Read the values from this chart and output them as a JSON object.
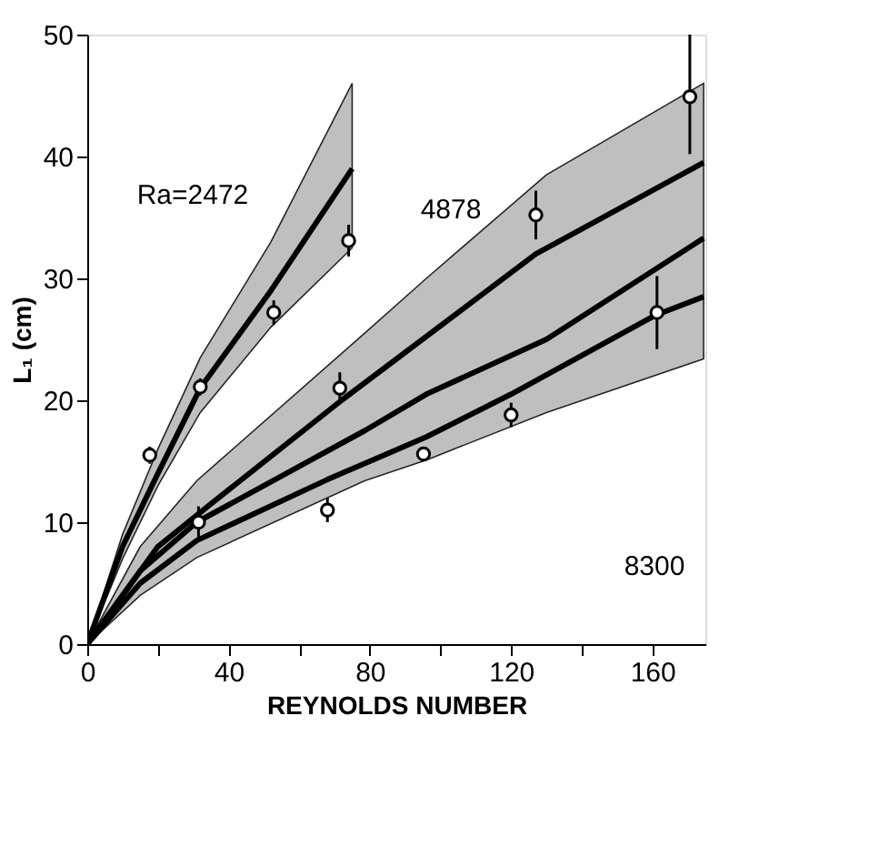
{
  "chart_data": {
    "type": "line",
    "xlabel": "REYNOLDS NUMBER",
    "ylabel": "L₁ (cm)",
    "xlim": [
      0,
      175
    ],
    "ylim": [
      0,
      50
    ],
    "xticks": [
      0,
      {
        "value": 20,
        "label": null
      },
      40,
      {
        "value": 60,
        "label": null
      },
      80,
      {
        "value": 100,
        "label": null
      },
      120,
      {
        "value": 140,
        "label": null
      },
      160
    ],
    "yticks": [
      0,
      10,
      20,
      30,
      40,
      50
    ],
    "grid": false,
    "line_style": "solid",
    "series": [
      {
        "color": "#000000",
        "x": [
          0,
          10,
          20,
          32,
          52,
          75
        ],
        "values": [
          0,
          8,
          14,
          21,
          29,
          39
        ],
        "lower": [
          0,
          7,
          13,
          19,
          26,
          32.5
        ],
        "upper": [
          0,
          9,
          16,
          23.5,
          33,
          46
        ]
      },
      {
        "color": "#000000",
        "x": [
          0,
          15,
          31,
          78.5,
          96,
          130,
          174.5
        ],
        "values": [
          0,
          6,
          10,
          17.5,
          20.5,
          25,
          33.3
        ],
        "lower": [
          0,
          4,
          7.1,
          13.4,
          15.1,
          19,
          23.4
        ],
        "upper": [
          0,
          8,
          13.4,
          25.5,
          30,
          38.5,
          46
        ]
      },
      {
        "color": "#000000",
        "x": [
          0,
          20,
          35,
          72,
          127,
          174.5
        ],
        "values": [
          0,
          8,
          11.5,
          20,
          32,
          39.5
        ]
      },
      {
        "color": "#000000",
        "x": [
          0,
          15,
          31,
          68,
          96,
          120,
          161,
          174.5
        ],
        "values": [
          0,
          5,
          8.5,
          13.5,
          17,
          20.5,
          27,
          28.5
        ]
      },
      {
        "type": "scatter",
        "color": "#000000",
        "marker": "circle",
        "x": [
          17.7,
          32,
          52.8,
          74,
          31.5,
          71.5,
          127,
          170.6,
          68,
          95.2,
          120,
          161.3
        ],
        "values": [
          15.5,
          21.1,
          27.2,
          33.1,
          10,
          21,
          35.2,
          44.9,
          11,
          15.6,
          18.8,
          27.2
        ],
        "errors": [
          0.7,
          0.7,
          1,
          1.3,
          1.3,
          1.3,
          2,
          [
            40.2,
            50
          ],
          1,
          0.5,
          1,
          3
        ]
      }
    ],
    "annotations": [
      "Ra=2472",
      "4878",
      "8300"
    ]
  }
}
